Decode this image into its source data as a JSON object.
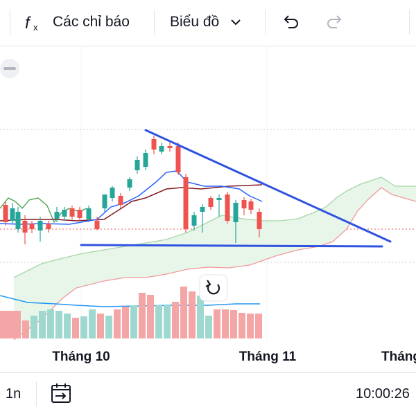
{
  "toolbar": {
    "indicators_label": "Các chỉ báo",
    "chart_type_label": "Biểu đồ",
    "icons": [
      "fx-icon",
      "chevron-down-icon",
      "undo-icon",
      "redo-icon"
    ]
  },
  "chart": {
    "time_labels": [
      "Tháng 10",
      "Tháng 11",
      "Tháng"
    ],
    "reset_icon": "rotate-icon",
    "collapse_icon": "minus-icon",
    "colors": {
      "up": "#26a69a",
      "down": "#ef5350",
      "trendline": "#2f52e0",
      "conversion_line": "#2962ff",
      "base_line": "#801922",
      "lagging_span": "#43a047",
      "lead_a": "#a5d6a7",
      "lead_b": "#ef9a9a",
      "cloud": "#e8f5e9",
      "volume_ma": "#2196f3"
    }
  },
  "footer": {
    "interval_label": "1n",
    "date_range_icon": "calendar-arrow-icon",
    "clock": "10:00:26"
  }
}
